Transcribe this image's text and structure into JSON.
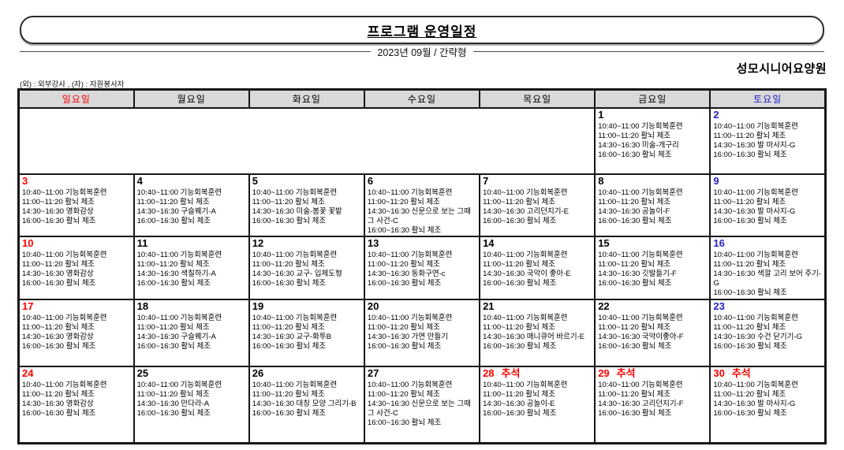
{
  "header": {
    "title": "프로그램 운영일정",
    "subtitle": "2023년 09월 / 간략형",
    "facility": "성모시니어요양원",
    "legend": "(외) : 외부강사 , (자) : 자원봉사자"
  },
  "colors": {
    "weekday": "#000000",
    "sunday": "#ff0000",
    "saturday": "#2222cc",
    "holiday": "#ff0000",
    "header_bg": "#d9d9d9"
  },
  "calendar": {
    "day_headers": [
      {
        "label": "일요일",
        "type": "sunday"
      },
      {
        "label": "월요일",
        "type": "weekday"
      },
      {
        "label": "화요일",
        "type": "weekday"
      },
      {
        "label": "수요일",
        "type": "weekday"
      },
      {
        "label": "목요일",
        "type": "weekday"
      },
      {
        "label": "금요일",
        "type": "weekday"
      },
      {
        "label": "토요일",
        "type": "saturday"
      }
    ],
    "weeks": [
      [
        {
          "blank": 5
        },
        {
          "day": "1",
          "color": "weekday",
          "lines": [
            "10:40~11:00 기능회복훈련",
            "11:00~11:20 활뇌 체조",
            "14:30~16:30 미술-개구리",
            "16:00~16:30 활뇌 체조"
          ]
        },
        {
          "day": "2",
          "color": "saturday",
          "lines": [
            "10:40~11:00 기능회복훈련",
            "11:00~11:20 활뇌 체조",
            "14:30~16:30 발 마사지-G",
            "16:00~16:30 활뇌 체조"
          ]
        }
      ],
      [
        {
          "day": "3",
          "color": "sunday",
          "lines": [
            "10:40~11:00 기능회복훈련",
            "11:00~11:20 활뇌 체조",
            "14:30~16:30 영화감상",
            "16:00~16:30 활뇌 체조"
          ]
        },
        {
          "day": "4",
          "color": "weekday",
          "lines": [
            "10:40~11:00 기능회복훈련",
            "11:00~11:20 활뇌 체조",
            "14:30~16:30 구슬꿰기-A",
            "16:00~16:30 활뇌 체조"
          ]
        },
        {
          "day": "5",
          "color": "weekday",
          "lines": [
            "10:40~11:00 기능회복훈련",
            "11:00~11:20 활뇌 체조",
            "14:30~16:30 미술-봄꽃 꽃밭",
            "16:00~16:30 활뇌 체조"
          ]
        },
        {
          "day": "6",
          "color": "weekday",
          "lines": [
            "10:40~11:00 기능회복훈련",
            "11:00~11:20 활뇌 체조",
            "14:30~16:30 신문으로 보는 그때 그 사건-C",
            "16:00~16:30 활뇌 체조"
          ]
        },
        {
          "day": "7",
          "color": "weekday",
          "lines": [
            "10:40~11:00 기능회복훈련",
            "11:00~11:20 활뇌 체조",
            "14:30~16:30 고리던지기-E",
            "16:00~16:30 활뇌 체조"
          ]
        },
        {
          "day": "8",
          "color": "weekday",
          "lines": [
            "10:40~11:00 기능회복훈련",
            "11:00~11:20 활뇌 체조",
            "14:30~16:30 공놀이-F",
            "16:00~16:30 활뇌 체조"
          ]
        },
        {
          "day": "9",
          "color": "saturday",
          "lines": [
            "10:40~11:00 기능회복훈련",
            "11:00~11:20 활뇌 체조",
            "14:30~16:30 발 마사지-G",
            "16:00~16:30 활뇌 체조"
          ]
        }
      ],
      [
        {
          "day": "10",
          "color": "sunday",
          "lines": [
            "10:40~11:00 기능회복훈련",
            "11:00~11:20 활뇌 체조",
            "14:30~16:30 영화감상",
            "16:00~16:30 활뇌 체조"
          ]
        },
        {
          "day": "11",
          "color": "weekday",
          "lines": [
            "10:40~11:00 기능회복훈련",
            "11:00~11:20 활뇌 체조",
            "14:30~16:30 색칠하기-A",
            "16:00~16:30 활뇌 체조"
          ]
        },
        {
          "day": "12",
          "color": "weekday",
          "lines": [
            "10:40~11:00 기능회복훈련",
            "11:00~11:20 활뇌 체조",
            "14:30~16:30 교구- 입체도형",
            "16:00~16:30 활뇌 체조"
          ]
        },
        {
          "day": "13",
          "color": "weekday",
          "lines": [
            "10:40~11:00 기능회복훈련",
            "11:00~11:20 활뇌 체조",
            "14:30~16:30 동화구연-c",
            "16:00~16:30 활뇌 체조"
          ]
        },
        {
          "day": "14",
          "color": "weekday",
          "lines": [
            "10:40~11:00 기능회복훈련",
            "11:00~11:20 활뇌 체조",
            "14:30~16:30 국악이 좋아-E",
            "16:00~16:30 활뇌 체조"
          ]
        },
        {
          "day": "15",
          "color": "weekday",
          "lines": [
            "10:40~11:00 기능회복훈련",
            "11:00~11:20 활뇌 체조",
            "14:30~16:30 깃발들기-F",
            "16:00~16:30 활뇌 체조"
          ]
        },
        {
          "day": "16",
          "color": "saturday",
          "lines": [
            "10:40~11:00 기능회복훈련",
            "11:00~11:20 활뇌 체조",
            "14:30~16:30 색깔 고리 보어 주기-G",
            "16:00~16:30 활뇌 체조"
          ]
        }
      ],
      [
        {
          "day": "17",
          "color": "sunday",
          "lines": [
            "10:40~11:00 기능회복훈련",
            "11:00~11:20 활뇌 체조",
            "14:30~16:30 영화감상",
            "16:00~16:30 활뇌 체조"
          ]
        },
        {
          "day": "18",
          "color": "weekday",
          "lines": [
            "10:40~11:00 기능회복훈련",
            "11:00~11:20 활뇌 체조",
            "14:30~16:30 구슬꿰기-A",
            "16:00~16:30 활뇌 체조"
          ]
        },
        {
          "day": "19",
          "color": "weekday",
          "lines": [
            "10:40~11:00 기능회복훈련",
            "11:00~11:20 활뇌 체조",
            "14:30~16:30 교구-화투B",
            "16:00~16:30 활뇌 체조"
          ]
        },
        {
          "day": "20",
          "color": "weekday",
          "lines": [
            "10:40~11:00 기능회복훈련",
            "11:00~11:20 활뇌 체조",
            "14:30~16:30 가면 만들기",
            "16:00~16:30 활뇌 체조"
          ]
        },
        {
          "day": "21",
          "color": "weekday",
          "lines": [
            "10:40~11:00 기능회복훈련",
            "11:00~11:20 활뇌 체조",
            "14:30~16:30 매니큐어 바르기-E",
            "16:00~16:30 활뇌 체조"
          ]
        },
        {
          "day": "22",
          "color": "weekday",
          "lines": [
            "10:40~11:00 기능회복훈련",
            "11:00~11:20 활뇌 체조",
            "14:30~16:30 국악이좋아-F",
            "16:00~16:30 활뇌 체조"
          ]
        },
        {
          "day": "23",
          "color": "saturday",
          "lines": [
            "10:40~11:00 기능회복훈련",
            "11:00~11:20 활뇌 체조",
            "14:30~16:30 수건 닫기기-G",
            "16:00~16:30 활뇌 체조"
          ]
        }
      ],
      [
        {
          "day": "24",
          "color": "sunday",
          "lines": [
            "10:40~11:00 기능회복훈련",
            "11:00~11:20 활뇌 체조",
            "14:30~16:30 영화감상",
            "16:00~16:30 활뇌 체조"
          ]
        },
        {
          "day": "25",
          "color": "weekday",
          "lines": [
            "10:40~11:00 기능회복훈련",
            "11:00~11:20 활뇌 체조",
            "14:30~16:30 만다라-A",
            "16:00~16:30 활뇌 체조"
          ]
        },
        {
          "day": "26",
          "color": "weekday",
          "lines": [
            "10:40~11:00 기능회복훈련",
            "11:00~11:20 활뇌 체조",
            "14:30~16:30 대칭 모양 그리기-B",
            "16:00~16:30 활뇌 체조"
          ]
        },
        {
          "day": "27",
          "color": "weekday",
          "lines": [
            "10:40~11:00 기능회복훈련",
            "11:00~11:20 활뇌 체조",
            "14:30~16:30 신문으로 보는 그때 그 사건-C",
            "16:00~16:30 활뇌 체조"
          ]
        },
        {
          "day": "28",
          "color": "holiday",
          "holiday": "추석",
          "lines": [
            "10:40~11:00 기능회복훈련",
            "11:00~11:20 활뇌 체조",
            "14:30~16:30 공놀이-E",
            "16:00~16:30 활뇌 체조"
          ]
        },
        {
          "day": "29",
          "color": "holiday",
          "holiday": "추석",
          "lines": [
            "10:40~11:00 기능회복훈련",
            "11:00~11:20 활뇌 체조",
            "14:30~16:30 고리던지기-F",
            "16:00~16:30 활뇌 체조"
          ]
        },
        {
          "day": "30",
          "color": "holiday",
          "holiday": "추석",
          "lines": [
            "10:40~11:00 기능회복훈련",
            "11:00~11:20 활뇌 체조",
            "14:30~16:30 발 마사지-G",
            "16:00~16:30 활뇌 체조"
          ]
        }
      ]
    ]
  }
}
